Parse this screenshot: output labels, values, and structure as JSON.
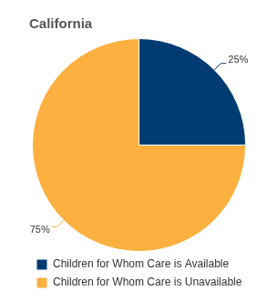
{
  "chart_data": {
    "type": "pie",
    "title": "California",
    "categories": [
      "Children for Whom Care is Available",
      "Children for Whom Care is Unavailable"
    ],
    "values": [
      25,
      75
    ],
    "value_labels": [
      "25%",
      "75%"
    ],
    "colors": [
      "#003b71",
      "#fbb040"
    ],
    "data_labels": true,
    "legend": "bottom"
  }
}
